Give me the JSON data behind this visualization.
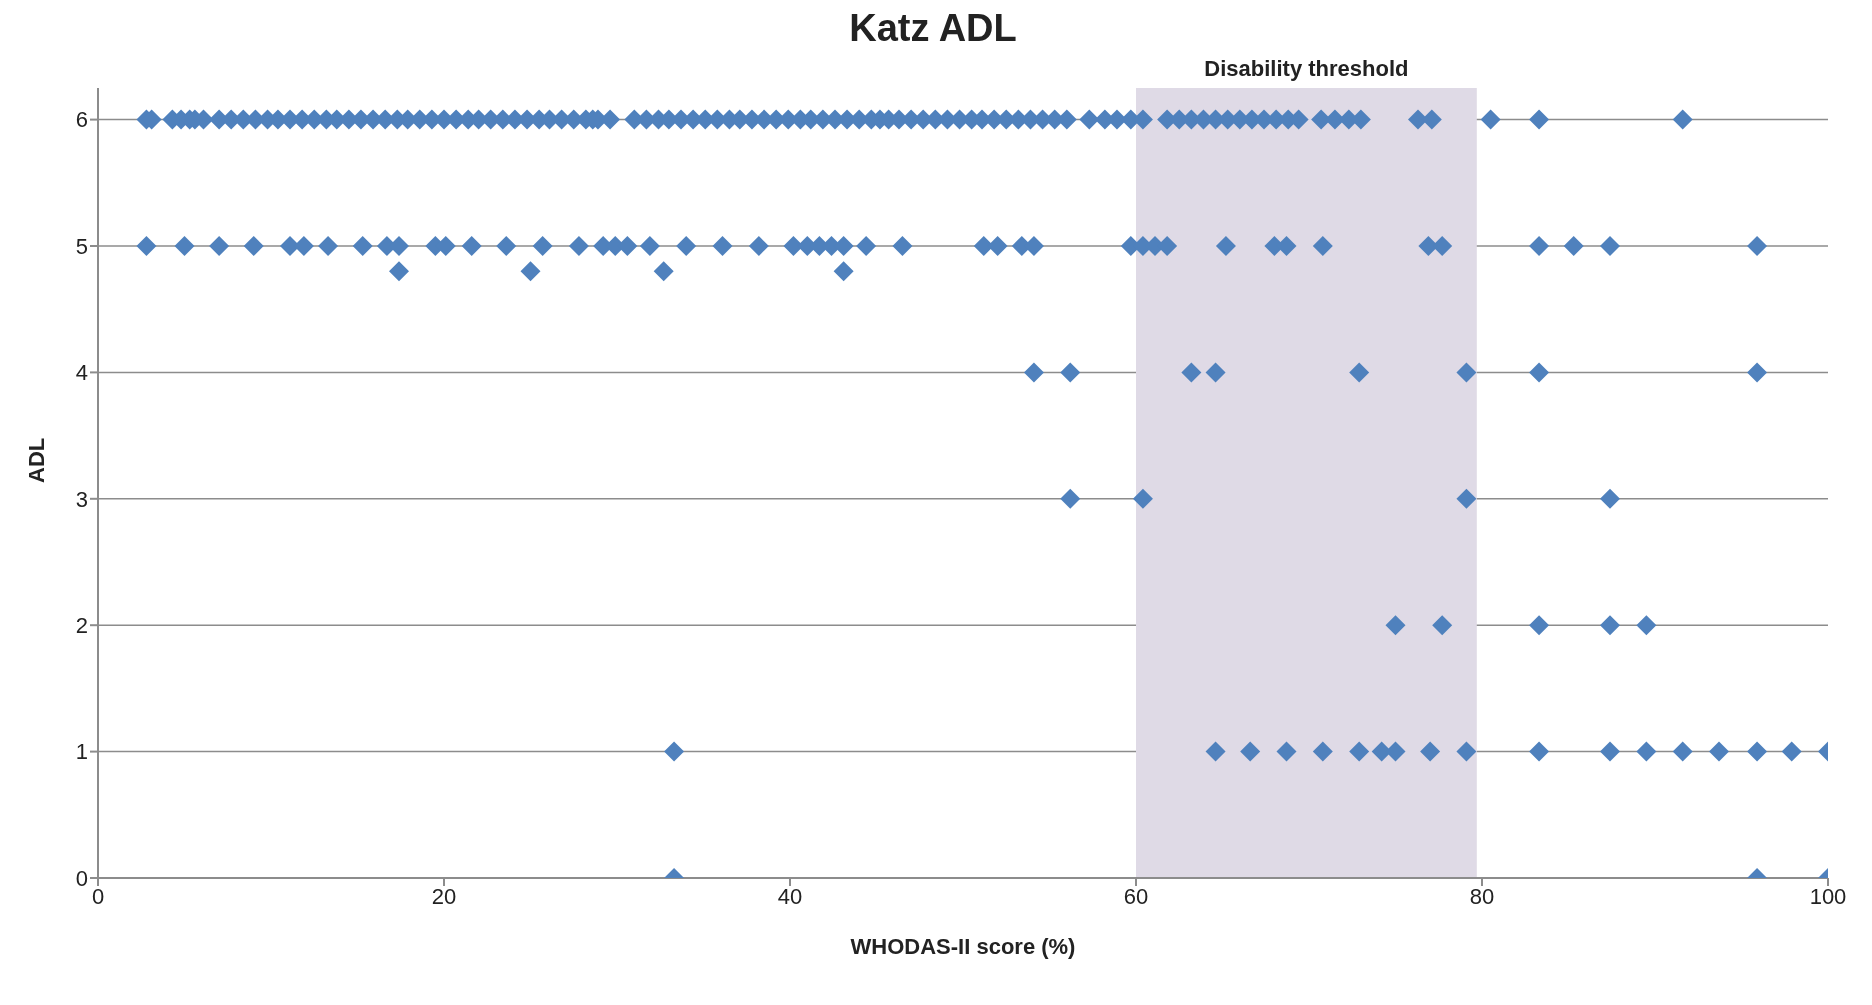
{
  "chart_data": {
    "type": "scatter",
    "title": "Katz ADL",
    "xlabel": "WHODAS-II score (%)",
    "ylabel": "ADL",
    "x": [
      2.8,
      3.1,
      4.3,
      4.8,
      5.3,
      5.6,
      6.1,
      7,
      7.7,
      8.4,
      9.1,
      9.8,
      10.4,
      11.1,
      11.8,
      12.5,
      13.2,
      13.8,
      14.5,
      15.2,
      15.9,
      16.6,
      17.3,
      17.9,
      18.6,
      19.3,
      20,
      20.7,
      21.4,
      22,
      22.7,
      23.4,
      24.1,
      24.8,
      25.5,
      26.1,
      26.8,
      27.5,
      28.2,
      28.6,
      28.9,
      29.6,
      31,
      31.7,
      32.4,
      33,
      33.7,
      34.4,
      35.1,
      35.8,
      36.5,
      37.1,
      37.8,
      38.5,
      39.2,
      39.9,
      40.6,
      41.2,
      41.9,
      42.6,
      43.3,
      44,
      44.7,
      45.2,
      45.7,
      46.3,
      47,
      47.7,
      48.4,
      49.1,
      49.8,
      50.5,
      51.1,
      51.8,
      52.5,
      53.2,
      53.9,
      54.6,
      55.3,
      56,
      57.3,
      58.2,
      58.9,
      59.7,
      60.4,
      61.8,
      62.5,
      63.2,
      63.9,
      64.6,
      65.3,
      66,
      66.7,
      67.4,
      68.1,
      68.8,
      69.4,
      70.7,
      71.5,
      72.3,
      73,
      76.3,
      77.1,
      80.5,
      83.3,
      91.6,
      2.8,
      5,
      7,
      9,
      11.1,
      11.9,
      13.3,
      15.3,
      16.7,
      17.4,
      19.5,
      20.1,
      21.6,
      23.6,
      25.7,
      27.8,
      29.2,
      29.9,
      30.6,
      31.9,
      34,
      36.1,
      38.2,
      40.2,
      41,
      41.7,
      42.4,
      43.1,
      44.4,
      46.5,
      51.2,
      52,
      53.4,
      54.1,
      59.7,
      60.4,
      61.1,
      61.8,
      65.2,
      68,
      68.7,
      70.8,
      76.9,
      77.7,
      83.3,
      85.3,
      87.4,
      95.9,
      17.4,
      25,
      32.7,
      43.1,
      54.1,
      56.2,
      63.2,
      64.6,
      72.9,
      79.1,
      83.3,
      95.9,
      56.2,
      60.4,
      79.1,
      87.4,
      75,
      77.7,
      83.3,
      87.4,
      89.5,
      33.3,
      64.6,
      66.6,
      68.7,
      70.8,
      72.9,
      74.2,
      75,
      77,
      79.1,
      83.3,
      87.4,
      89.5,
      91.6,
      93.7,
      95.9,
      97.9,
      100,
      33.3,
      95.9,
      100
    ],
    "values": [
      6,
      6,
      6,
      6,
      6,
      6,
      6,
      6,
      6,
      6,
      6,
      6,
      6,
      6,
      6,
      6,
      6,
      6,
      6,
      6,
      6,
      6,
      6,
      6,
      6,
      6,
      6,
      6,
      6,
      6,
      6,
      6,
      6,
      6,
      6,
      6,
      6,
      6,
      6,
      6,
      6,
      6,
      6,
      6,
      6,
      6,
      6,
      6,
      6,
      6,
      6,
      6,
      6,
      6,
      6,
      6,
      6,
      6,
      6,
      6,
      6,
      6,
      6,
      6,
      6,
      6,
      6,
      6,
      6,
      6,
      6,
      6,
      6,
      6,
      6,
      6,
      6,
      6,
      6,
      6,
      6,
      6,
      6,
      6,
      6,
      6,
      6,
      6,
      6,
      6,
      6,
      6,
      6,
      6,
      6,
      6,
      6,
      6,
      6,
      6,
      6,
      6,
      6,
      6,
      6,
      6,
      5,
      5,
      5,
      5,
      5,
      5,
      5,
      5,
      5,
      5,
      5,
      5,
      5,
      5,
      5,
      5,
      5,
      5,
      5,
      5,
      5,
      5,
      5,
      5,
      5,
      5,
      5,
      5,
      5,
      5,
      5,
      5,
      5,
      5,
      5,
      5,
      5,
      5,
      5,
      5,
      5,
      5,
      5,
      5,
      5,
      5,
      5,
      5,
      4.8,
      4.8,
      4.8,
      4.8,
      4,
      4,
      4,
      4,
      4,
      4,
      4,
      4,
      3,
      3,
      3,
      3,
      2,
      2,
      2,
      2,
      2,
      1,
      1,
      1,
      1,
      1,
      1,
      1,
      1,
      1,
      1,
      1,
      1,
      1,
      1,
      1,
      1,
      1,
      1,
      0,
      0,
      0
    ],
    "color": "#4f81bd",
    "marker": "diamond",
    "xlim": [
      0,
      100
    ],
    "xticks": [
      0,
      20,
      40,
      60,
      80,
      100
    ],
    "ylim": [
      0,
      6.25
    ],
    "yticks": [
      0,
      1,
      2,
      3,
      4,
      5,
      6
    ],
    "grid": "y",
    "legend": false,
    "bands": [
      {
        "axis": "x",
        "from": 60,
        "to": 79.7,
        "label": "Disability threshold",
        "color": "#dfdae6"
      }
    ]
  }
}
